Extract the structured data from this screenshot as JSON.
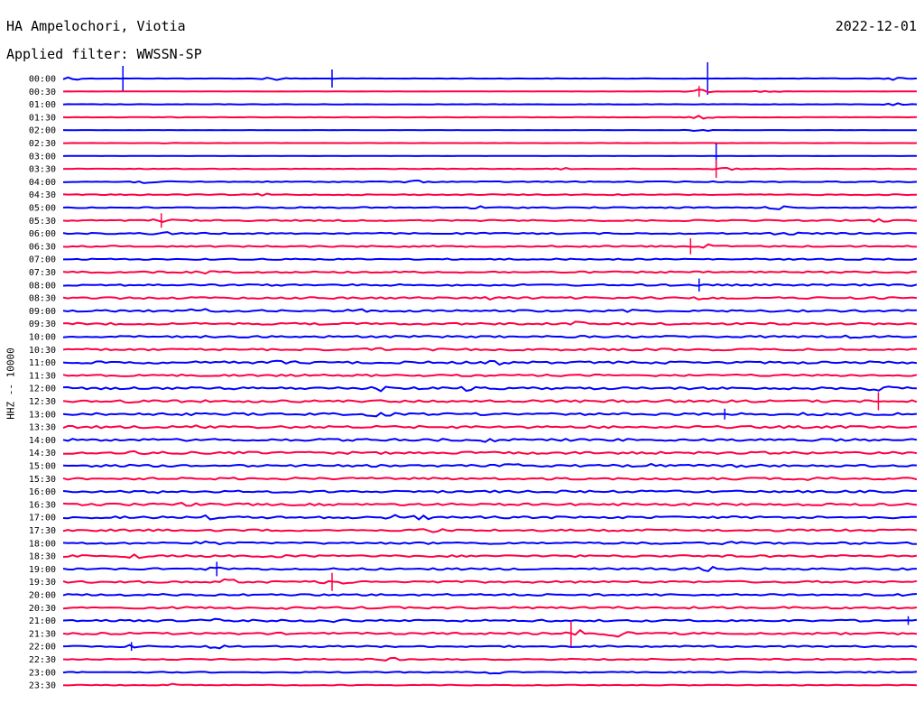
{
  "header": {
    "station": "HA Ampelochori, Viotia",
    "date": "2022-12-01",
    "filter": "Applied filter: WWSSN-SP"
  },
  "chart_data": {
    "type": "line",
    "title": "HA Ampelochori, Viotia",
    "ylabel": "HHZ -- 10000",
    "colors": [
      "#0000ff",
      "#ff0044"
    ],
    "rows": [
      "00:00",
      "00:30",
      "01:00",
      "01:30",
      "02:00",
      "02:30",
      "03:00",
      "03:30",
      "04:00",
      "04:30",
      "05:00",
      "05:30",
      "06:00",
      "06:30",
      "07:00",
      "07:30",
      "08:00",
      "08:30",
      "09:00",
      "09:30",
      "10:00",
      "10:30",
      "11:00",
      "11:30",
      "12:00",
      "12:30",
      "13:00",
      "13:30",
      "14:00",
      "14:30",
      "15:00",
      "15:30",
      "16:00",
      "16:30",
      "17:00",
      "17:30",
      "18:00",
      "18:30",
      "19:00",
      "19:30",
      "20:00",
      "20:30",
      "21:00",
      "21:30",
      "22:00",
      "22:30",
      "23:00",
      "23:30"
    ],
    "noise": [
      0.2,
      0.15,
      0.2,
      0.2,
      0.15,
      0.1,
      0.1,
      0.3,
      0.5,
      0.5,
      0.6,
      0.7,
      0.7,
      0.7,
      0.7,
      0.8,
      0.9,
      1.0,
      1.0,
      1.0,
      1.0,
      1.0,
      1.2,
      1.0,
      1.2,
      1.2,
      1.2,
      1.2,
      1.2,
      1.2,
      1.1,
      1.1,
      1.1,
      1.1,
      1.1,
      1.0,
      1.0,
      1.0,
      1.0,
      1.0,
      1.0,
      1.0,
      1.0,
      1.0,
      0.8,
      0.6,
      0.5,
      0.4
    ],
    "events": [
      [
        0,
        0.005,
        2.8
      ],
      [
        0,
        0.245,
        2.5
      ],
      [
        0,
        0.975,
        1.5
      ],
      [
        1,
        0.745,
        2.0
      ],
      [
        1,
        0.825,
        1.4
      ],
      [
        2,
        0.975,
        1.4
      ],
      [
        3,
        0.135,
        0.8
      ],
      [
        3,
        0.745,
        3.5
      ],
      [
        4,
        0.745,
        1.6
      ],
      [
        5,
        0.125,
        0.5
      ],
      [
        7,
        0.775,
        1.8
      ],
      [
        7,
        0.585,
        1.0
      ],
      [
        8,
        0.095,
        1.4
      ],
      [
        8,
        0.41,
        1.2
      ],
      [
        9,
        0.235,
        0.9
      ],
      [
        10,
        0.485,
        1.3
      ],
      [
        10,
        0.835,
        1.6
      ],
      [
        11,
        0.115,
        1.8
      ],
      [
        11,
        0.955,
        1.5
      ],
      [
        12,
        0.115,
        1.6
      ],
      [
        12,
        0.845,
        1.5
      ],
      [
        13,
        0.755,
        1.8
      ],
      [
        15,
        0.17,
        1.3
      ],
      [
        17,
        0.51,
        2.0
      ],
      [
        17,
        0.755,
        1.8
      ],
      [
        18,
        0.16,
        2.0
      ],
      [
        18,
        0.345,
        1.4
      ],
      [
        18,
        0.665,
        1.4
      ],
      [
        19,
        0.6,
        1.6
      ],
      [
        20,
        0.925,
        1.8
      ],
      [
        21,
        0.365,
        1.4
      ],
      [
        22,
        0.255,
        1.3
      ],
      [
        22,
        0.51,
        1.2
      ],
      [
        24,
        0.37,
        2.6
      ],
      [
        24,
        0.47,
        1.8
      ],
      [
        24,
        0.955,
        2.0
      ],
      [
        25,
        0.085,
        1.8
      ],
      [
        26,
        0.37,
        2.3
      ],
      [
        26,
        0.88,
        1.3
      ],
      [
        27,
        0.165,
        1.6
      ],
      [
        28,
        0.5,
        1.6
      ],
      [
        29,
        0.085,
        1.5
      ],
      [
        30,
        0.525,
        1.5
      ],
      [
        30,
        0.69,
        1.4
      ],
      [
        30,
        0.8,
        1.4
      ],
      [
        31,
        0.88,
        1.6
      ],
      [
        32,
        0.12,
        1.3
      ],
      [
        33,
        0.14,
        1.3
      ],
      [
        34,
        0.17,
        1.3
      ],
      [
        34,
        0.39,
        1.8
      ],
      [
        34,
        0.42,
        1.5
      ],
      [
        35,
        0.43,
        2.0
      ],
      [
        36,
        0.17,
        1.6
      ],
      [
        36,
        0.78,
        1.4
      ],
      [
        37,
        0.085,
        1.6
      ],
      [
        37,
        0.255,
        1.5
      ],
      [
        38,
        0.185,
        2.8
      ],
      [
        38,
        0.755,
        1.8
      ],
      [
        39,
        0.195,
        2.6
      ],
      [
        39,
        0.32,
        2.8
      ],
      [
        40,
        0.965,
        2.0
      ],
      [
        41,
        0.25,
        1.2
      ],
      [
        42,
        0.075,
        1.3
      ],
      [
        42,
        0.175,
        1.2
      ],
      [
        42,
        0.32,
        1.4
      ],
      [
        43,
        0.6,
        3.5
      ],
      [
        43,
        0.65,
        2.5
      ],
      [
        44,
        0.08,
        1.0
      ],
      [
        44,
        0.18,
        1.6
      ],
      [
        45,
        0.385,
        1.2
      ],
      [
        46,
        0.505,
        1.3
      ],
      [
        47,
        0.13,
        1.2
      ]
    ],
    "spikes": [
      [
        0,
        0.07,
        3.5
      ],
      [
        0,
        0.315,
        2.5
      ],
      [
        0,
        0.755,
        4.5
      ],
      [
        1,
        0.745,
        1.5
      ],
      [
        6,
        0.765,
        3.5
      ],
      [
        7,
        0.765,
        2.5
      ],
      [
        11,
        0.115,
        2.0
      ],
      [
        13,
        0.735,
        2.2
      ],
      [
        16,
        0.745,
        1.8
      ],
      [
        25,
        0.955,
        2.5
      ],
      [
        26,
        0.775,
        1.5
      ],
      [
        38,
        0.18,
        2.0
      ],
      [
        39,
        0.315,
        2.5
      ],
      [
        42,
        0.99,
        1.2
      ],
      [
        43,
        0.595,
        3.5
      ],
      [
        44,
        0.08,
        1.2
      ]
    ]
  }
}
